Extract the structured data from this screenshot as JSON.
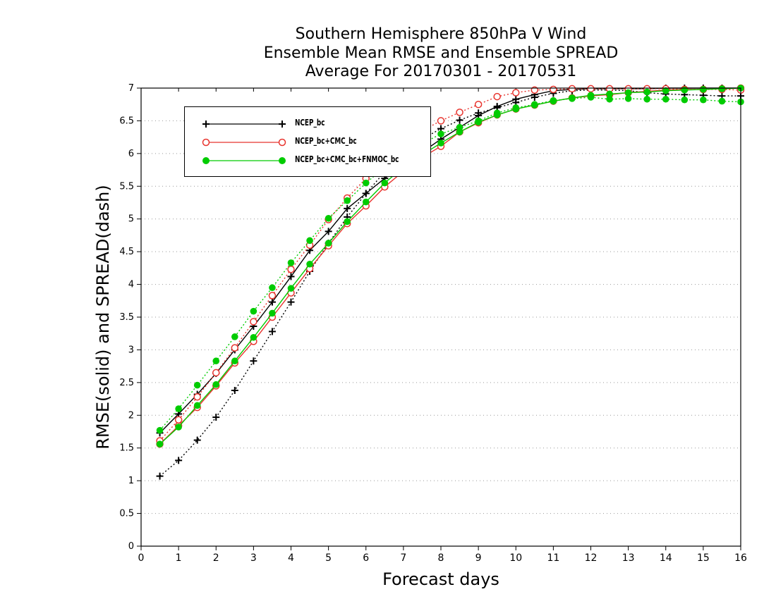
{
  "title": {
    "line1": "Southern Hemisphere 850hPa V Wind",
    "line2": "Ensemble Mean RMSE and Ensemble SPREAD",
    "line3": "Average For 20170301 - 20170531"
  },
  "chart_data": {
    "type": "line",
    "xlabel": "Forecast days",
    "ylabel": "RMSE(solid) and SPREAD(dash)",
    "xlim": [
      0,
      16
    ],
    "ylim": [
      0,
      7
    ],
    "xticks": [
      "0",
      "1",
      "2",
      "3",
      "4",
      "5",
      "6",
      "7",
      "8",
      "9",
      "10",
      "11",
      "12",
      "13",
      "14",
      "15",
      "16"
    ],
    "yticks": [
      "0",
      "0.5",
      "1",
      "1.5",
      "2",
      "2.5",
      "3",
      "3.5",
      "4",
      "4.5",
      "5",
      "5.5",
      "6",
      "6.5",
      "7"
    ],
    "grid": "horizontal dotted",
    "legend_position": "top-left",
    "colors": {
      "NCEP_bc": "#000000",
      "NCEP_bc+CMC_bc": "#e8342e",
      "NCEP_bc+CMC_bc+FNMOC_bc": "#00cc00"
    },
    "x": [
      0.5,
      1,
      1.5,
      2,
      2.5,
      3,
      3.5,
      4,
      4.5,
      5,
      5.5,
      6,
      6.5,
      7,
      7.5,
      8,
      8.5,
      9,
      9.5,
      10,
      10.5,
      11,
      11.5,
      12,
      12.5,
      13,
      13.5,
      14,
      14.5,
      15,
      15.5,
      16
    ],
    "series": [
      {
        "name": "NCEP_bc",
        "style": "solid",
        "marker": "plus",
        "values": [
          1.73,
          2.02,
          2.32,
          2.64,
          3.0,
          3.36,
          3.73,
          4.12,
          4.52,
          4.81,
          5.16,
          5.39,
          5.62,
          5.83,
          6.02,
          6.22,
          6.4,
          6.58,
          6.72,
          6.83,
          6.9,
          6.96,
          6.98,
          6.99,
          6.99,
          6.99,
          6.99,
          7.0,
          7.0,
          7.0,
          7.0,
          7.0
        ]
      },
      {
        "name": "NCEP_bc",
        "style": "dash",
        "marker": "plus",
        "values": [
          1.07,
          1.31,
          1.62,
          1.97,
          2.38,
          2.83,
          3.28,
          3.73,
          4.2,
          4.63,
          5.03,
          5.39,
          5.72,
          6.0,
          6.22,
          6.38,
          6.51,
          6.62,
          6.7,
          6.78,
          6.86,
          6.92,
          6.96,
          6.97,
          6.97,
          6.96,
          6.93,
          6.91,
          6.9,
          6.89,
          6.88,
          6.88
        ]
      },
      {
        "name": "NCEP_bc+CMC_bc",
        "style": "solid",
        "marker": "circle",
        "values": [
          1.56,
          1.84,
          2.12,
          2.45,
          2.8,
          3.13,
          3.5,
          3.87,
          4.24,
          4.59,
          4.93,
          5.2,
          5.49,
          5.73,
          5.94,
          6.11,
          6.33,
          6.47,
          6.59,
          6.68,
          6.74,
          6.8,
          6.85,
          6.88,
          6.9,
          6.93,
          6.95,
          6.97,
          6.98,
          6.98,
          6.99,
          7.0
        ]
      },
      {
        "name": "NCEP_bc+CMC_bc",
        "style": "dash",
        "marker": "circle",
        "values": [
          1.61,
          1.93,
          2.28,
          2.65,
          3.03,
          3.43,
          3.83,
          4.23,
          4.6,
          4.99,
          5.32,
          5.62,
          5.9,
          6.15,
          6.35,
          6.5,
          6.63,
          6.75,
          6.87,
          6.93,
          6.97,
          6.98,
          6.99,
          6.99,
          6.99,
          6.99,
          6.99,
          6.99,
          6.98,
          6.98,
          6.98,
          6.97
        ]
      },
      {
        "name": "NCEP_bc+CMC_bc+FNMOC_bc",
        "style": "solid",
        "marker": "dot",
        "values": [
          1.56,
          1.82,
          2.15,
          2.47,
          2.83,
          3.19,
          3.56,
          3.94,
          4.31,
          4.63,
          4.96,
          5.26,
          5.55,
          5.79,
          5.98,
          6.16,
          6.33,
          6.48,
          6.59,
          6.68,
          6.74,
          6.8,
          6.85,
          6.89,
          6.91,
          6.93,
          6.94,
          6.96,
          6.97,
          6.98,
          6.99,
          7.0
        ]
      },
      {
        "name": "NCEP_bc+CMC_bc+FNMOC_bc",
        "style": "dash",
        "marker": "dot",
        "values": [
          1.77,
          2.1,
          2.46,
          2.83,
          3.2,
          3.59,
          3.95,
          4.33,
          4.67,
          5.01,
          5.28,
          5.55,
          5.79,
          5.99,
          6.15,
          6.3,
          6.4,
          6.5,
          6.62,
          6.7,
          6.75,
          6.81,
          6.84,
          6.86,
          6.83,
          6.84,
          6.83,
          6.83,
          6.82,
          6.82,
          6.8,
          6.79
        ]
      }
    ],
    "legend": [
      "NCEP_bc",
      "NCEP_bc+CMC_bc",
      "NCEP_bc+CMC_bc+FNMOC_bc"
    ]
  }
}
